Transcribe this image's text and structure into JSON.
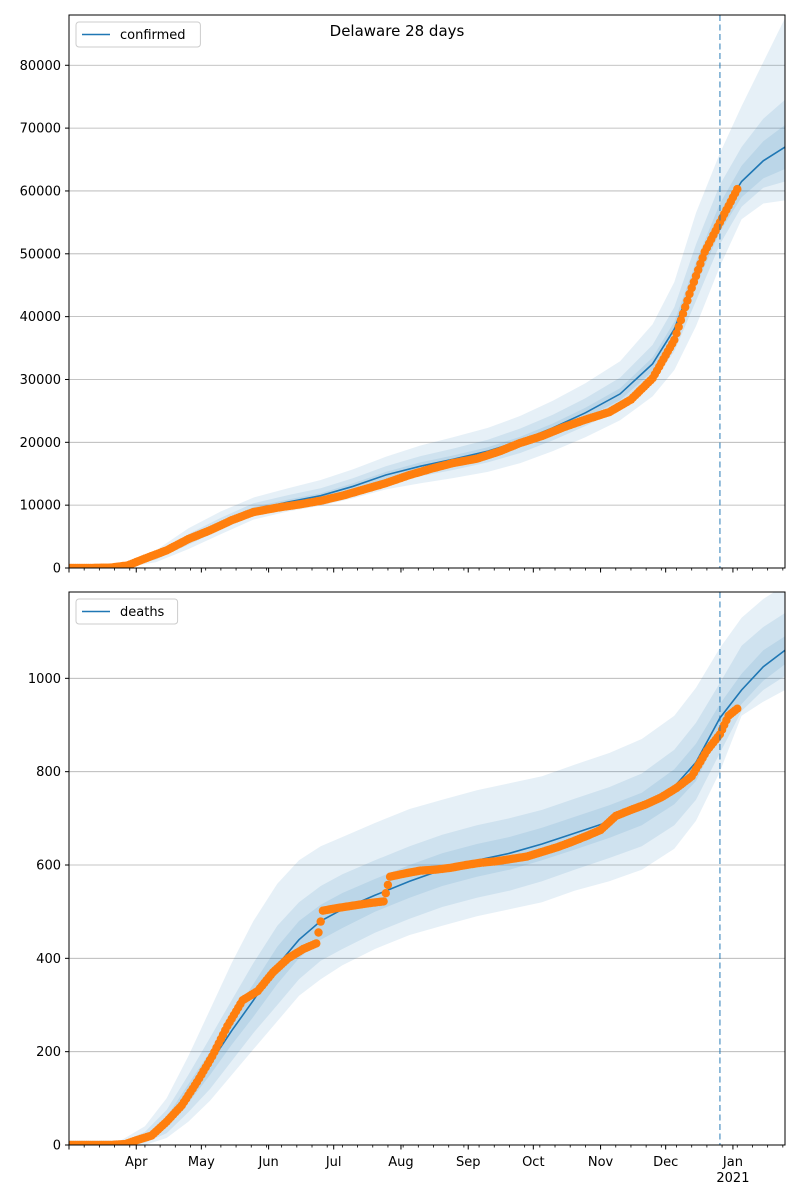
{
  "colors": {
    "model": "#1f77b4",
    "observed": "#ff7f0e",
    "band": "#1f77b4",
    "grid": "#b0b0b0",
    "vline": "#1f77b4"
  },
  "chart_data": [
    {
      "type": "line",
      "title": "Delaware 28 days",
      "legend": {
        "position": "top-left",
        "label": "confirmed"
      },
      "x_type": "date",
      "xlim": [
        "2020-03-01",
        "2021-01-25"
      ],
      "ylim": [
        0,
        88000
      ],
      "y_ticks": [
        0,
        10000,
        20000,
        30000,
        40000,
        50000,
        60000,
        70000,
        80000
      ],
      "x_tick_labels": [],
      "grid": "horizontal",
      "forecast_start": "2020-12-26",
      "model_line": {
        "name": "confirmed",
        "x": [
          "2020-03-01",
          "2020-03-25",
          "2020-04-10",
          "2020-04-25",
          "2020-05-10",
          "2020-05-25",
          "2020-06-10",
          "2020-06-25",
          "2020-07-10",
          "2020-07-25",
          "2020-08-10",
          "2020-08-25",
          "2020-09-10",
          "2020-09-25",
          "2020-10-10",
          "2020-10-25",
          "2020-11-10",
          "2020-11-25",
          "2020-12-05",
          "2020-12-15",
          "2020-12-26",
          "2021-01-05",
          "2021-01-15",
          "2021-01-25"
        ],
        "y": [
          0,
          200,
          1800,
          4500,
          7000,
          9300,
          10500,
          11500,
          13000,
          14800,
          16200,
          17300,
          18600,
          20200,
          22300,
          24700,
          27700,
          32500,
          38000,
          47000,
          56000,
          61500,
          64800,
          67000
        ]
      },
      "bands": [
        {
          "level": "outer",
          "upper": [
            100,
            600,
            2800,
            6300,
            9000,
            11200,
            12700,
            14000,
            15700,
            17700,
            19500,
            20800,
            22300,
            24200,
            26600,
            29400,
            32900,
            38800,
            45500,
            56500,
            66000,
            73500,
            80500,
            87500
          ],
          "lower": [
            0,
            0,
            900,
            3000,
            5400,
            7700,
            9000,
            9900,
            11100,
            12500,
            13500,
            14300,
            15300,
            16700,
            18600,
            20800,
            23500,
            27300,
            31500,
            38500,
            48000,
            55500,
            58000,
            58500
          ]
        },
        {
          "level": "mid",
          "upper": [
            50,
            400,
            2300,
            5400,
            8000,
            10300,
            11600,
            12700,
            14300,
            16200,
            17800,
            19000,
            20400,
            22200,
            24400,
            27000,
            30300,
            35500,
            41500,
            51500,
            61000,
            67000,
            71500,
            74500
          ],
          "lower": [
            0,
            50,
            1300,
            3700,
            6100,
            8400,
            9600,
            10500,
            11800,
            13400,
            14600,
            15600,
            16800,
            18300,
            20300,
            22600,
            25300,
            29600,
            34500,
            42500,
            51500,
            57500,
            60500,
            61500
          ]
        },
        {
          "level": "inner",
          "upper": [
            20,
            300,
            2000,
            4900,
            7400,
            9700,
            10900,
            11900,
            13500,
            15300,
            16800,
            17900,
            19200,
            20900,
            23000,
            25500,
            28600,
            33500,
            39200,
            48700,
            58000,
            64000,
            67900,
            70500
          ],
          "lower": [
            0,
            100,
            1600,
            4100,
            6600,
            8900,
            10100,
            11000,
            12400,
            14200,
            15500,
            16600,
            17900,
            19500,
            21500,
            23900,
            26700,
            31300,
            36600,
            45000,
            53500,
            59000,
            62000,
            63500
          ]
        }
      ],
      "observed": {
        "x": [
          "2020-03-01",
          "2020-03-10",
          "2020-03-20",
          "2020-03-28",
          "2020-04-05",
          "2020-04-15",
          "2020-04-25",
          "2020-05-05",
          "2020-05-15",
          "2020-05-25",
          "2020-06-05",
          "2020-06-15",
          "2020-06-25",
          "2020-07-05",
          "2020-07-15",
          "2020-07-25",
          "2020-08-05",
          "2020-08-15",
          "2020-08-25",
          "2020-09-05",
          "2020-09-15",
          "2020-09-25",
          "2020-10-05",
          "2020-10-15",
          "2020-10-25",
          "2020-11-05",
          "2020-11-15",
          "2020-11-25",
          "2020-12-05",
          "2020-12-12",
          "2020-12-19",
          "2020-12-26",
          "2020-12-31",
          "2021-01-03"
        ],
        "y": [
          0,
          10,
          60,
          400,
          1500,
          2800,
          4600,
          6000,
          7600,
          8900,
          9600,
          10100,
          10700,
          11500,
          12500,
          13500,
          14800,
          15800,
          16700,
          17400,
          18500,
          19900,
          21000,
          22400,
          23600,
          24800,
          26800,
          30200,
          36300,
          43600,
          50300,
          55000,
          58300,
          60300
        ]
      }
    },
    {
      "type": "line",
      "title": "",
      "legend": {
        "position": "top-left",
        "label": "deaths"
      },
      "x_type": "date",
      "xlim": [
        "2020-03-01",
        "2021-01-25"
      ],
      "ylim": [
        0,
        1185
      ],
      "y_ticks": [
        0,
        200,
        400,
        600,
        800,
        1000
      ],
      "x_tick_labels": [
        {
          "date": "2020-04-01",
          "label": "Apr",
          "sub": ""
        },
        {
          "date": "2020-05-01",
          "label": "May",
          "sub": ""
        },
        {
          "date": "2020-06-01",
          "label": "Jun",
          "sub": ""
        },
        {
          "date": "2020-07-01",
          "label": "Jul",
          "sub": ""
        },
        {
          "date": "2020-08-01",
          "label": "Aug",
          "sub": ""
        },
        {
          "date": "2020-09-01",
          "label": "Sep",
          "sub": ""
        },
        {
          "date": "2020-10-01",
          "label": "Oct",
          "sub": ""
        },
        {
          "date": "2020-11-01",
          "label": "Nov",
          "sub": ""
        },
        {
          "date": "2020-12-01",
          "label": "Dec",
          "sub": ""
        },
        {
          "date": "2021-01-01",
          "label": "Jan",
          "sub": "2021"
        }
      ],
      "grid": "horizontal",
      "forecast_start": "2020-12-26",
      "model_line": {
        "name": "deaths",
        "x": [
          "2020-03-01",
          "2020-03-25",
          "2020-04-05",
          "2020-04-15",
          "2020-04-25",
          "2020-05-05",
          "2020-05-15",
          "2020-05-25",
          "2020-06-05",
          "2020-06-15",
          "2020-06-25",
          "2020-07-05",
          "2020-07-20",
          "2020-08-05",
          "2020-08-20",
          "2020-09-05",
          "2020-09-20",
          "2020-10-05",
          "2020-10-20",
          "2020-11-05",
          "2020-11-20",
          "2020-12-05",
          "2020-12-15",
          "2020-12-26",
          "2021-01-05",
          "2021-01-15",
          "2021-01-25"
        ],
        "y": [
          0,
          0,
          15,
          50,
          110,
          175,
          245,
          310,
          385,
          440,
          480,
          505,
          535,
          565,
          590,
          610,
          625,
          645,
          668,
          693,
          720,
          768,
          820,
          915,
          975,
          1025,
          1060
        ]
      },
      "bands": [
        {
          "level": "outer",
          "upper": [
            10,
            10,
            40,
            100,
            190,
            290,
            390,
            480,
            560,
            610,
            640,
            660,
            690,
            720,
            740,
            760,
            775,
            790,
            815,
            840,
            870,
            920,
            980,
            1065,
            1130,
            1170,
            1200
          ],
          "lower": [
            0,
            0,
            0,
            15,
            50,
            95,
            150,
            205,
            265,
            320,
            355,
            385,
            420,
            450,
            470,
            490,
            505,
            520,
            545,
            565,
            590,
            635,
            695,
            800,
            920,
            950,
            975
          ]
        },
        {
          "level": "mid",
          "upper": [
            5,
            5,
            28,
            75,
            150,
            230,
            310,
            390,
            470,
            520,
            555,
            580,
            610,
            640,
            665,
            685,
            700,
            718,
            742,
            767,
            796,
            847,
            905,
            990,
            1070,
            1110,
            1140
          ],
          "lower": [
            0,
            0,
            5,
            25,
            70,
            120,
            180,
            240,
            300,
            355,
            395,
            420,
            455,
            485,
            510,
            530,
            545,
            565,
            590,
            615,
            640,
            685,
            740,
            840,
            930,
            975,
            1005
          ]
        },
        {
          "level": "inner",
          "upper": [
            2,
            2,
            20,
            60,
            130,
            200,
            275,
            345,
            425,
            480,
            515,
            540,
            570,
            600,
            625,
            645,
            660,
            680,
            703,
            728,
            755,
            805,
            860,
            945,
            1010,
            1060,
            1090
          ],
          "lower": [
            0,
            0,
            10,
            38,
            90,
            150,
            215,
            275,
            345,
            400,
            440,
            465,
            500,
            530,
            555,
            575,
            590,
            610,
            633,
            658,
            685,
            730,
            780,
            885,
            945,
            995,
            1030
          ]
        }
      ],
      "observed": {
        "x": [
          "2020-03-01",
          "2020-03-10",
          "2020-03-20",
          "2020-03-27",
          "2020-04-01",
          "2020-04-08",
          "2020-04-15",
          "2020-04-22",
          "2020-04-29",
          "2020-05-06",
          "2020-05-13",
          "2020-05-20",
          "2020-05-27",
          "2020-06-03",
          "2020-06-10",
          "2020-06-17",
          "2020-06-23",
          "2020-06-26",
          "2020-07-03",
          "2020-07-10",
          "2020-07-17",
          "2020-07-24",
          "2020-07-27",
          "2020-08-03",
          "2020-08-10",
          "2020-08-17",
          "2020-08-24",
          "2020-08-31",
          "2020-09-07",
          "2020-09-14",
          "2020-09-21",
          "2020-09-28",
          "2020-10-05",
          "2020-10-12",
          "2020-10-19",
          "2020-10-26",
          "2020-11-01",
          "2020-11-08",
          "2020-11-15",
          "2020-11-22",
          "2020-11-29",
          "2020-12-06",
          "2020-12-13",
          "2020-12-20",
          "2020-12-26",
          "2020-12-30",
          "2021-01-03"
        ],
        "y": [
          0,
          0,
          0,
          2,
          10,
          20,
          50,
          85,
          135,
          190,
          255,
          310,
          330,
          370,
          400,
          420,
          432,
          502,
          508,
          513,
          518,
          522,
          575,
          582,
          588,
          590,
          594,
          600,
          605,
          608,
          613,
          618,
          628,
          638,
          650,
          663,
          675,
          705,
          718,
          730,
          745,
          765,
          790,
          845,
          880,
          920,
          935
        ]
      }
    }
  ]
}
